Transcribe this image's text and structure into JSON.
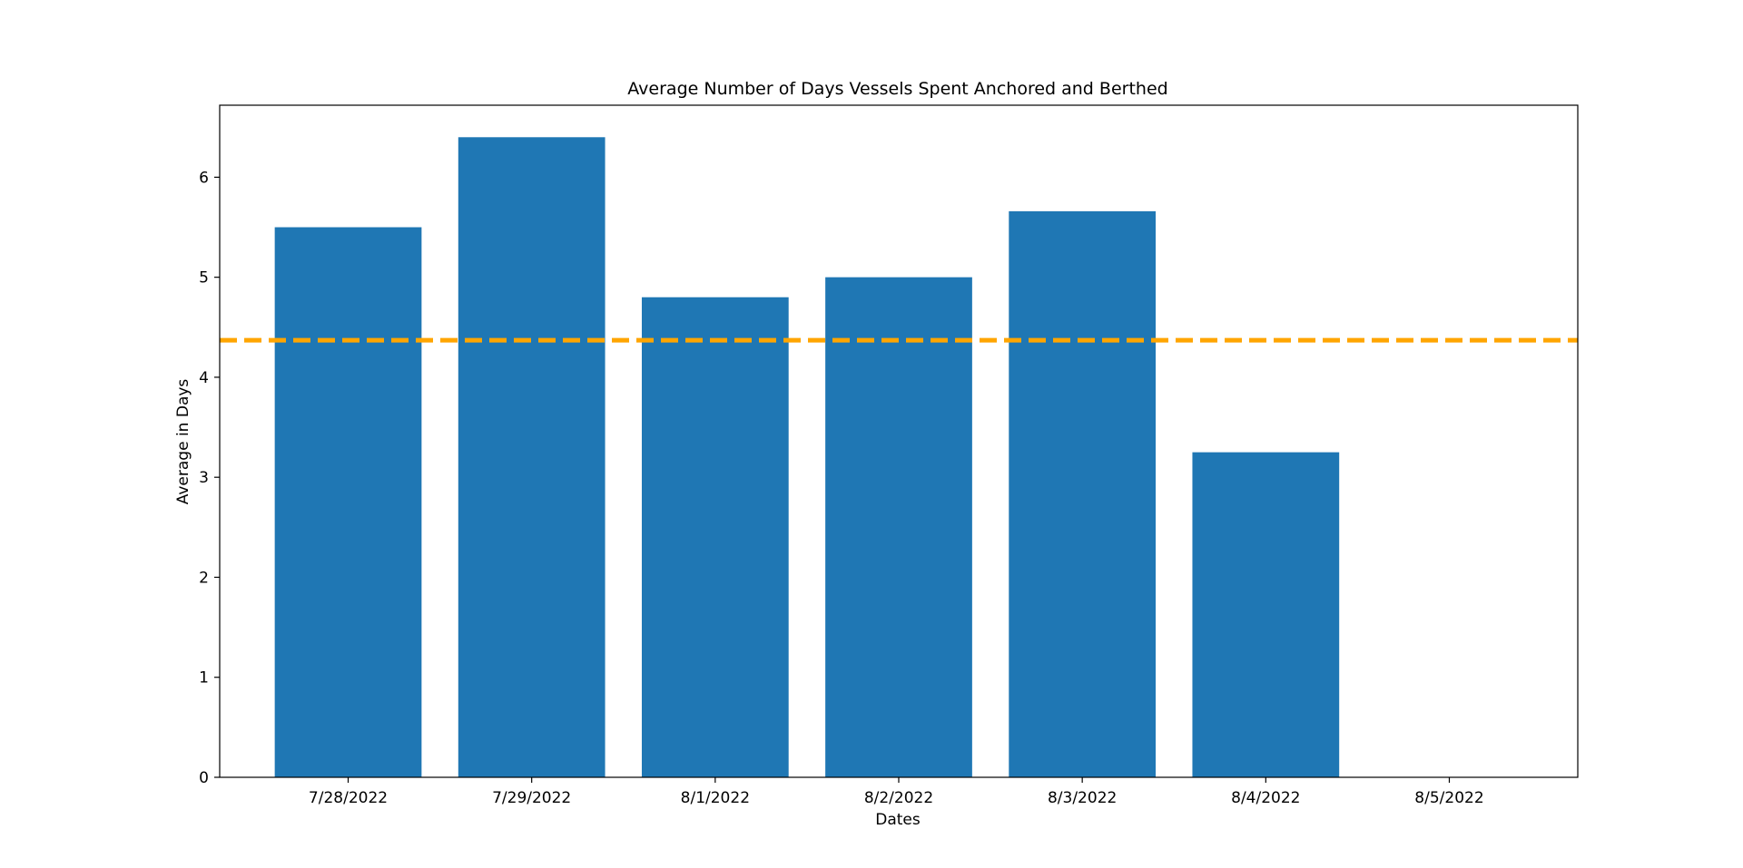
{
  "chart_data": {
    "type": "bar",
    "title": "Average Number of Days Vessels Spent Anchored and Berthed",
    "xlabel": "Dates",
    "ylabel": "Average in Days",
    "categories": [
      "7/28/2022",
      "7/29/2022",
      "8/1/2022",
      "8/2/2022",
      "8/3/2022",
      "8/4/2022",
      "8/5/2022"
    ],
    "values": [
      5.5,
      6.4,
      4.8,
      5.0,
      5.66,
      3.25,
      0
    ],
    "ylim": [
      0,
      6.72
    ],
    "yticks": [
      0,
      1,
      2,
      3,
      4,
      5,
      6
    ],
    "grid": false,
    "reference_line": {
      "value": 4.37,
      "style": "dashed",
      "color": "#ffa500"
    },
    "bar_color": "#1f77b4"
  }
}
